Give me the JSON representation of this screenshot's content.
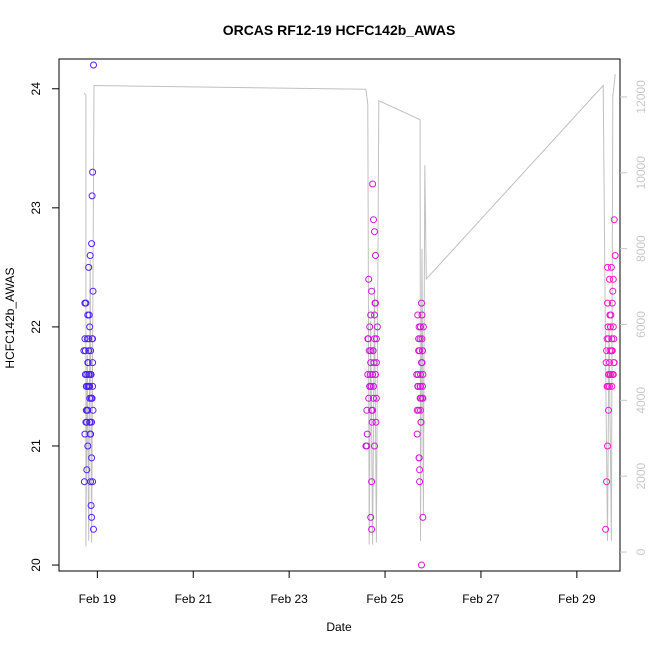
{
  "chart_data": {
    "type": "scatter",
    "title": "ORCAS RF12-19 HCFC142b_AWAS",
    "xlabel": "Date",
    "ylabel": "HCFC142b_AWAS",
    "x_ticks": [
      "Feb 19",
      "Feb 21",
      "Feb 23",
      "Feb 25",
      "Feb 27",
      "Feb 29"
    ],
    "y_ticks": [
      "20",
      "21",
      "22",
      "23",
      "24"
    ],
    "y2_ticks": [
      "0",
      "2000",
      "4000",
      "6000",
      "8000",
      "10000",
      "12000"
    ],
    "xlim_days": [
      18.2,
      29.9
    ],
    "ylim": [
      19.95,
      24.25
    ],
    "y2lim": [
      -500,
      13000
    ],
    "colors": {
      "axis": "#000000",
      "secondary": "#c0c0c0",
      "early": "#3a23ff",
      "late": "#ff14cc"
    },
    "altitude_track": [
      [
        18.72,
        12100
      ],
      [
        18.76,
        12050
      ],
      [
        18.76,
        150
      ],
      [
        18.79,
        5200
      ],
      [
        18.82,
        300
      ],
      [
        18.85,
        7700
      ],
      [
        18.88,
        250
      ],
      [
        18.93,
        12300
      ],
      [
        24.6,
        12200
      ],
      [
        24.64,
        11800
      ],
      [
        24.67,
        200
      ],
      [
        24.7,
        6100
      ],
      [
        24.74,
        200
      ],
      [
        24.78,
        7000
      ],
      [
        24.82,
        250
      ],
      [
        24.87,
        11900
      ],
      [
        25.73,
        11400
      ],
      [
        25.74,
        300
      ],
      [
        25.77,
        8000
      ],
      [
        25.8,
        1000
      ],
      [
        25.83,
        10200
      ],
      [
        25.86,
        7200
      ],
      [
        29.55,
        12300
      ],
      [
        29.6,
        5000
      ],
      [
        29.64,
        300
      ],
      [
        29.67,
        6000
      ],
      [
        29.72,
        300
      ],
      [
        29.75,
        12000
      ],
      [
        29.8,
        12600
      ]
    ],
    "series": [
      {
        "x": [
          18.72,
          18.73,
          18.74,
          18.75,
          18.76,
          18.77,
          18.78,
          18.79,
          18.8,
          18.81,
          18.82,
          18.83,
          18.84,
          18.85,
          18.86,
          18.87,
          18.88,
          18.89,
          18.9,
          18.91,
          18.74,
          18.76,
          18.78,
          18.8,
          18.82,
          18.84,
          18.86,
          18.88,
          18.9,
          18.75,
          18.77,
          18.79,
          18.81,
          18.83,
          18.85,
          18.87,
          18.89,
          18.78,
          18.8,
          18.82,
          18.84,
          18.86,
          18.88,
          18.9,
          18.8,
          18.84,
          18.88,
          18.74,
          18.78,
          18.82,
          18.86,
          18.9,
          18.92,
          18.85,
          18.83,
          18.88,
          18.91,
          18.9,
          18.92,
          18.87,
          18.89
        ],
        "y": [
          21.8,
          20.7,
          21.1,
          21.6,
          22.2,
          21.3,
          20.8,
          21.9,
          22.1,
          21.5,
          22.5,
          21.6,
          21.2,
          22.6,
          21.8,
          21.4,
          22.7,
          23.1,
          21.7,
          21.3,
          22.2,
          21.2,
          21.5,
          21.0,
          21.9,
          22.0,
          21.6,
          21.2,
          23.3,
          21.8,
          21.5,
          21.3,
          21.7,
          22.1,
          21.2,
          21.6,
          21.9,
          21.6,
          21.3,
          21.8,
          21.5,
          21.1,
          21.4,
          21.9,
          21.7,
          21.4,
          20.9,
          21.9,
          21.2,
          21.6,
          20.7,
          21.5,
          24.2,
          21.1,
          21.5,
          20.4,
          22.3,
          20.7,
          20.3,
          20.5,
          21.4
        ]
      },
      {
        "x": [
          24.6,
          24.62,
          24.64,
          24.66,
          24.68,
          24.7,
          24.72,
          24.74,
          24.76,
          24.78,
          24.8,
          24.82,
          24.84,
          24.64,
          24.67,
          24.7,
          24.73,
          24.76,
          24.79,
          24.82,
          24.66,
          24.69,
          24.72,
          24.75,
          24.78,
          24.81,
          24.63,
          24.68,
          24.71,
          24.74,
          24.77,
          24.8,
          24.65,
          24.7,
          24.75,
          24.8,
          24.62,
          24.68,
          24.72,
          24.78,
          24.7,
          24.72,
          24.74,
          24.76,
          24.78,
          24.82
        ],
        "y": [
          21.0,
          21.3,
          21.9,
          22.4,
          21.5,
          21.7,
          20.7,
          23.2,
          22.9,
          22.8,
          22.6,
          21.4,
          22.0,
          21.6,
          21.8,
          22.1,
          21.2,
          21.5,
          22.2,
          21.9,
          21.4,
          21.6,
          22.3,
          21.8,
          21.0,
          21.2,
          21.1,
          22.0,
          21.5,
          21.3,
          21.7,
          21.6,
          21.9,
          20.4,
          21.8,
          22.2,
          21.0,
          21.5,
          21.3,
          22.1,
          21.8,
          20.3,
          21.6,
          21.4,
          21.9,
          21.7
        ]
      },
      {
        "x": [
          25.66,
          25.67,
          25.68,
          25.69,
          25.7,
          25.71,
          25.72,
          25.73,
          25.74,
          25.75,
          25.76,
          25.77,
          25.78,
          25.79,
          25.8,
          25.67,
          25.69,
          25.71,
          25.73,
          25.75,
          25.77,
          25.79,
          25.68,
          25.7,
          25.72,
          25.74,
          25.76,
          25.78,
          25.71,
          25.73,
          25.75,
          25.77,
          25.79,
          25.72,
          25.74,
          25.76,
          25.78,
          25.7,
          25.74,
          25.78
        ],
        "y": [
          21.6,
          21.3,
          22.1,
          21.5,
          21.9,
          20.9,
          21.8,
          21.4,
          22.0,
          21.2,
          22.2,
          21.7,
          21.5,
          20.4,
          22.0,
          21.1,
          21.6,
          20.9,
          21.9,
          21.4,
          22.1,
          21.6,
          21.5,
          21.8,
          20.8,
          21.3,
          21.7,
          21.4,
          22.0,
          21.5,
          21.2,
          21.9,
          21.4,
          20.7,
          21.6,
          20.0,
          21.8,
          21.3,
          21.5,
          21.8
        ]
      },
      {
        "x": [
          29.6,
          29.62,
          29.64,
          29.66,
          29.68,
          29.7,
          29.72,
          29.74,
          29.76,
          29.78,
          29.8,
          29.61,
          29.63,
          29.65,
          29.67,
          29.69,
          29.71,
          29.73,
          29.75,
          29.77,
          29.62,
          29.64,
          29.66,
          29.68,
          29.7,
          29.72,
          29.74,
          29.76,
          29.78,
          29.64,
          29.66,
          29.68,
          29.7,
          29.72,
          29.74,
          29.76,
          29.65,
          29.69,
          29.73,
          29.77,
          29.63
        ],
        "y": [
          20.3,
          20.7,
          21.0,
          21.3,
          21.5,
          21.6,
          21.8,
          22.2,
          22.4,
          22.9,
          22.6,
          21.7,
          21.9,
          22.0,
          21.6,
          21.8,
          22.1,
          21.5,
          22.3,
          21.9,
          21.8,
          22.5,
          21.6,
          21.7,
          22.0,
          21.8,
          21.6,
          22.0,
          21.7,
          22.2,
          21.9,
          22.4,
          21.6,
          22.5,
          21.8,
          21.6,
          21.5,
          22.1,
          21.9,
          21.7,
          21.5
        ]
      }
    ]
  }
}
